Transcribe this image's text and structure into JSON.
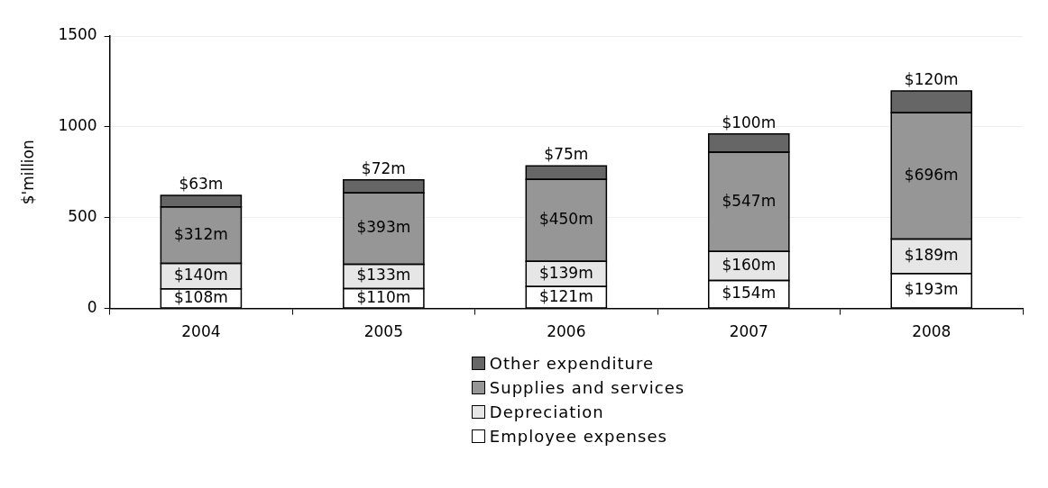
{
  "chart_data": {
    "type": "bar",
    "stacked": true,
    "ylabel": "$'million",
    "categories": [
      "2004",
      "2005",
      "2006",
      "2007",
      "2008"
    ],
    "series": [
      {
        "name": "Employee expenses",
        "color": "#ffffff",
        "values": [
          108,
          110,
          121,
          154,
          193
        ],
        "value_labels": [
          "$108m",
          "$110m",
          "$121m",
          "$154m",
          "$193m"
        ]
      },
      {
        "name": "Depreciation",
        "color": "#e6e6e6",
        "values": [
          140,
          133,
          139,
          160,
          189
        ],
        "value_labels": [
          "$140m",
          "$133m",
          "$139m",
          "$160m",
          "$189m"
        ]
      },
      {
        "name": "Supplies and services",
        "color": "#969696",
        "values": [
          312,
          393,
          450,
          547,
          696
        ],
        "value_labels": [
          "$312m",
          "$393m",
          "$450m",
          "$547m",
          "$696m"
        ]
      },
      {
        "name": "Other expenditure",
        "color": "#666666",
        "values": [
          63,
          72,
          75,
          100,
          120
        ],
        "value_labels": [
          "$63m",
          "$72m",
          "$75m",
          "$100m",
          "$120m"
        ]
      }
    ],
    "ylim": [
      0,
      1500
    ],
    "yticks": [
      0,
      500,
      1000,
      1500
    ],
    "grid": "y",
    "legend": "bottom"
  }
}
